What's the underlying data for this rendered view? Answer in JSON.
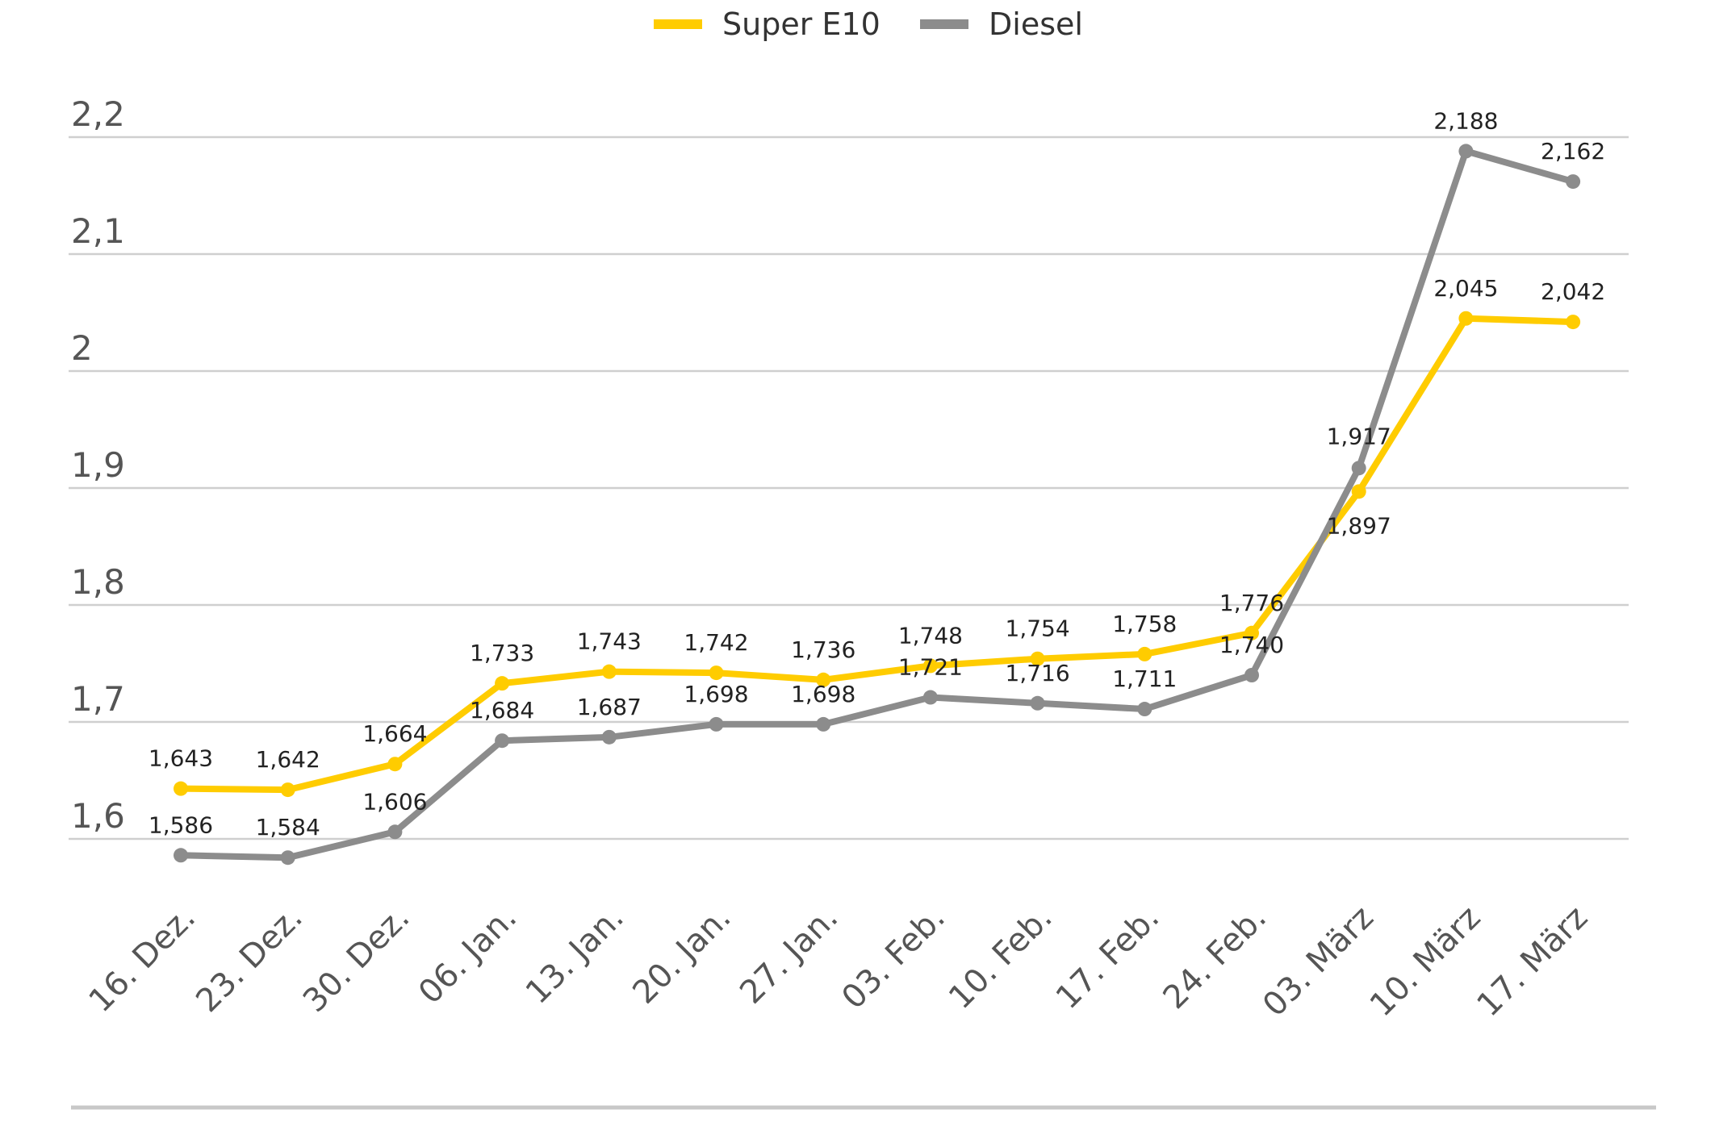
{
  "chart_data": {
    "type": "line",
    "title": "",
    "xlabel": "",
    "ylabel": "",
    "categories": [
      "16. Dez.",
      "23. Dez.",
      "30. Dez.",
      "06. Jan.",
      "13. Jan.",
      "20. Jan.",
      "27. Jan.",
      "03. Feb.",
      "10. Feb.",
      "17. Feb.",
      "24. Feb.",
      "03. März",
      "10. März",
      "17. März"
    ],
    "ylim": [
      1.6,
      2.2
    ],
    "yticks": [
      {
        "value": 1.6,
        "label": "1,6"
      },
      {
        "value": 1.7,
        "label": "1,7"
      },
      {
        "value": 1.8,
        "label": "1,8"
      },
      {
        "value": 1.9,
        "label": "1,9"
      },
      {
        "value": 2.0,
        "label": "2"
      },
      {
        "value": 2.1,
        "label": "2,1"
      },
      {
        "value": 2.2,
        "label": "2,2"
      }
    ],
    "grid": true,
    "legend_position": "top-center",
    "series": [
      {
        "name": "Super E10",
        "color": "#FFCC00",
        "values": [
          1.643,
          1.642,
          1.664,
          1.733,
          1.743,
          1.742,
          1.736,
          1.748,
          1.754,
          1.758,
          1.776,
          1.897,
          2.045,
          2.042
        ],
        "labels": [
          "1,643",
          "1,642",
          "1,664",
          "1,733",
          "1,743",
          "1,742",
          "1,736",
          "1,748",
          "1,754",
          "1,758",
          "1,776",
          "1,897",
          "2,045",
          "2,042"
        ]
      },
      {
        "name": "Diesel",
        "color": "#8C8C8C",
        "values": [
          1.586,
          1.584,
          1.606,
          1.684,
          1.687,
          1.698,
          1.698,
          1.721,
          1.716,
          1.711,
          1.74,
          1.917,
          2.188,
          2.162
        ],
        "labels": [
          "1,586",
          "1,584",
          "1,606",
          "1,684",
          "1,687",
          "1,698",
          "1,698",
          "1,721",
          "1,716",
          "1,711",
          "1,740",
          "1,917",
          "2,188",
          "2,162"
        ]
      }
    ]
  }
}
